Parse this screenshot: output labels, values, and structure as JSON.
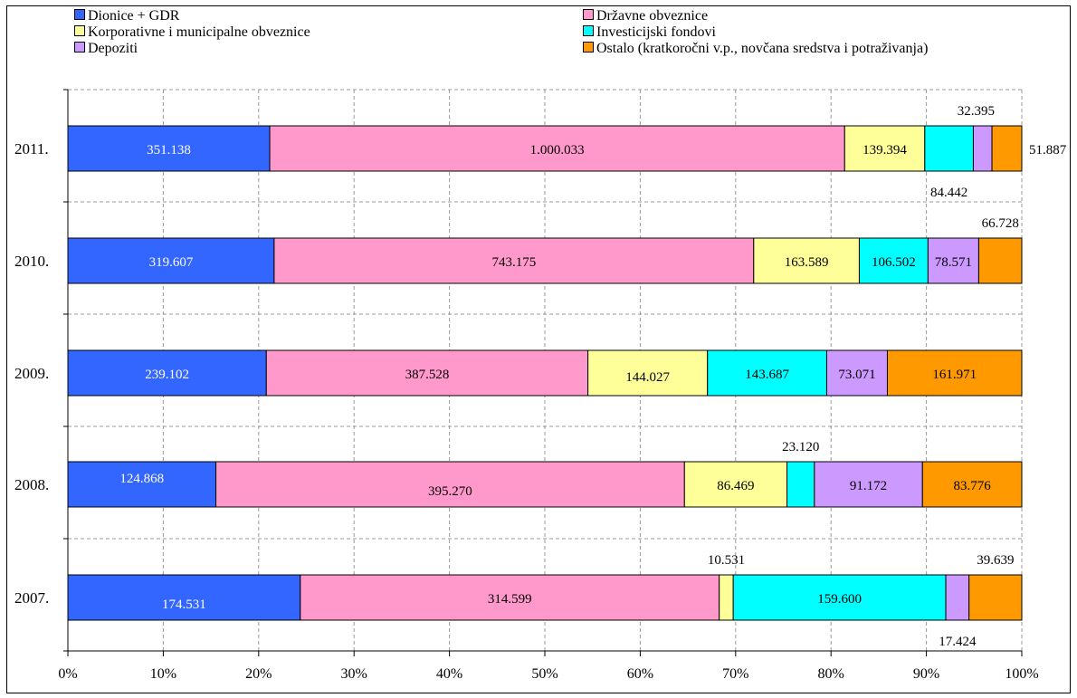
{
  "chart_data": {
    "type": "bar",
    "orientation": "horizontal",
    "stacked": "percent",
    "categories": [
      "2011.",
      "2010.",
      "2009.",
      "2008.",
      "2007."
    ],
    "series": [
      {
        "name": "Dionice + GDR",
        "color": "#3366ff",
        "values": [
          351138,
          319607,
          239102,
          124868,
          174531
        ],
        "labels": [
          "351.138",
          "319.607",
          "239.102",
          "124.868",
          "174.531"
        ]
      },
      {
        "name": "Državne obveznice",
        "color": "#ff99cc",
        "values": [
          1000033,
          743175,
          387528,
          395270,
          314599
        ],
        "labels": [
          "1.000.033",
          "743.175",
          "387.528",
          "395.270",
          "314.599"
        ]
      },
      {
        "name": "Korporativne i municipalne obveznice",
        "color": "#ffff99",
        "values": [
          139394,
          163589,
          144027,
          86469,
          10531
        ],
        "labels": [
          "139.394",
          "163.589",
          "144.027",
          "86.469",
          "10.531"
        ]
      },
      {
        "name": "Investicijski fondovi",
        "color": "#00ffff",
        "values": [
          84442,
          106502,
          143687,
          23120,
          159600
        ],
        "labels": [
          "84.442",
          "106.502",
          "143.687",
          "23.120",
          "159.600"
        ]
      },
      {
        "name": "Depoziti",
        "color": "#cc99ff",
        "values": [
          32395,
          78571,
          73071,
          91172,
          17424
        ],
        "labels": [
          "32.395",
          "78.571",
          "73.071",
          "91.172",
          "17.424"
        ]
      },
      {
        "name": "Ostalo (kratkoročni v.p., novčana sredstva i potraživanja)",
        "color": "#ff9900",
        "values": [
          51887,
          66728,
          161971,
          83776,
          39639
        ],
        "labels": [
          "51.887",
          "66.728",
          "161.971",
          "83.776",
          "39.639"
        ]
      }
    ],
    "xlim": [
      0,
      100
    ],
    "xticks": [
      "0%",
      "10%",
      "20%",
      "30%",
      "40%",
      "50%",
      "60%",
      "70%",
      "80%",
      "90%",
      "100%"
    ],
    "grid": "vertical dashed",
    "legend": "top",
    "xlabel": "",
    "ylabel": "",
    "title": ""
  }
}
